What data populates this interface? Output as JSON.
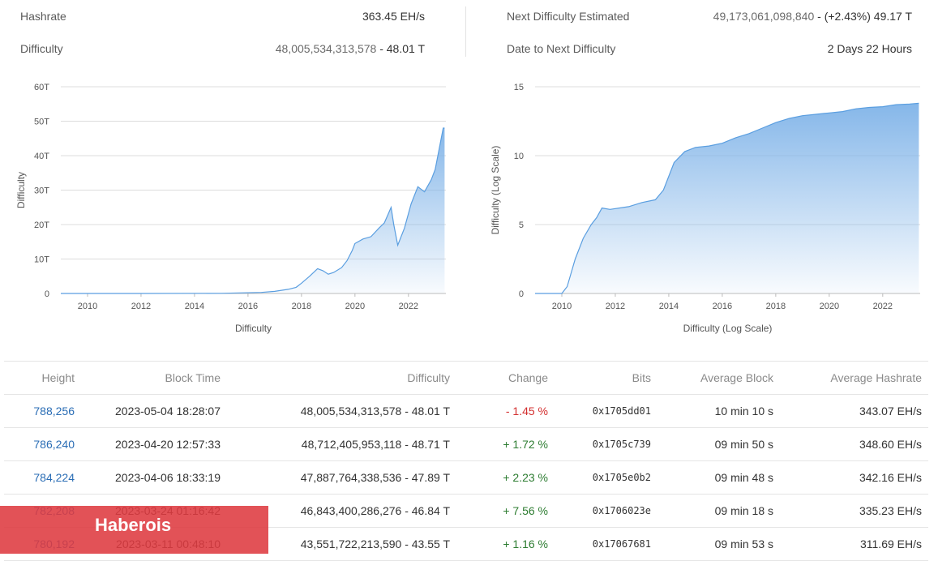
{
  "stats": {
    "hashrate_label": "Hashrate",
    "hashrate_value": "363.45 EH/s",
    "difficulty_label": "Difficulty",
    "difficulty_raw": "48,005,534,313,578",
    "difficulty_short": " - 48.01 T",
    "next_label": "Next Difficulty Estimated",
    "next_raw": "49,173,061,098,840",
    "next_short": " - (+2.43%) 49.17 T",
    "date_label": "Date to Next Difficulty",
    "date_value": "2 Days 22 Hours"
  },
  "colors": {
    "area": "#7fb3e8",
    "line": "#5a9ee0",
    "grid": "#dddddd",
    "link": "#2a6db5",
    "negative": "#d32f2f",
    "positive": "#2e7d32",
    "brand": "#de3a40"
  },
  "chart_data": [
    {
      "type": "area",
      "title": "",
      "xlabel": "Difficulty",
      "ylabel": "Difficulty",
      "xlim": [
        2009,
        2023.4
      ],
      "ylim": [
        0,
        60
      ],
      "y_ticks": [
        "0",
        "10T",
        "20T",
        "30T",
        "40T",
        "50T",
        "60T"
      ],
      "x_ticks": [
        "2010",
        "2012",
        "2014",
        "2016",
        "2018",
        "2020",
        "2022"
      ],
      "grid": true,
      "series": [
        {
          "x": [
            2009.0,
            2012.0,
            2015.0,
            2016.5,
            2017.0,
            2017.5,
            2017.8,
            2018.0,
            2018.3,
            2018.6,
            2018.8,
            2019.0,
            2019.2,
            2019.5,
            2019.7,
            2019.9,
            2020.0,
            2020.3,
            2020.6,
            2020.9,
            2021.1,
            2021.35,
            2021.45,
            2021.6,
            2021.85,
            2022.1,
            2022.35,
            2022.6,
            2022.85,
            2023.0,
            2023.1,
            2023.2,
            2023.3,
            2023.35
          ],
          "y": [
            0,
            0,
            0.05,
            0.3,
            0.6,
            1.2,
            1.8,
            3.0,
            5.0,
            7.2,
            6.6,
            5.6,
            6.1,
            7.5,
            9.5,
            12.5,
            14.5,
            15.8,
            16.5,
            19.0,
            20.5,
            25.0,
            20.0,
            14.0,
            19.0,
            26.0,
            31.0,
            29.5,
            33.0,
            36.0,
            40.0,
            44.0,
            48.0,
            48.0
          ]
        }
      ]
    },
    {
      "type": "area",
      "title": "",
      "xlabel": "Difficulty (Log Scale)",
      "ylabel": "Difficulty (Log Scale)",
      "xlim": [
        2009,
        2023.4
      ],
      "ylim": [
        0,
        15
      ],
      "y_ticks": [
        "0",
        "5",
        "10",
        "15"
      ],
      "x_ticks": [
        "2010",
        "2012",
        "2014",
        "2016",
        "2018",
        "2020",
        "2022"
      ],
      "grid": true,
      "series": [
        {
          "x": [
            2009.0,
            2010.0,
            2010.2,
            2010.5,
            2010.8,
            2011.1,
            2011.3,
            2011.5,
            2011.8,
            2012.5,
            2013.0,
            2013.5,
            2013.8,
            2014.2,
            2014.6,
            2015.0,
            2015.5,
            2016.0,
            2016.5,
            2017.0,
            2017.5,
            2018.0,
            2018.5,
            2019.0,
            2019.5,
            2020.0,
            2020.5,
            2021.0,
            2021.5,
            2022.0,
            2022.5,
            2023.0,
            2023.35
          ],
          "y": [
            0,
            0,
            0.5,
            2.5,
            4.0,
            5.0,
            5.5,
            6.2,
            6.1,
            6.3,
            6.6,
            6.8,
            7.5,
            9.5,
            10.3,
            10.6,
            10.7,
            10.9,
            11.3,
            11.6,
            12.0,
            12.4,
            12.7,
            12.9,
            13.0,
            13.1,
            13.2,
            13.4,
            13.5,
            13.55,
            13.7,
            13.75,
            13.8
          ]
        }
      ]
    }
  ],
  "table": {
    "headers": {
      "height": "Height",
      "block_time": "Block Time",
      "difficulty": "Difficulty",
      "change": "Change",
      "bits": "Bits",
      "avg_block": "Average Block",
      "avg_hashrate": "Average Hashrate"
    },
    "rows": [
      {
        "height": "788,256",
        "block_time": "2023-05-04 18:28:07",
        "difficulty": "48,005,534,313,578 - 48.01 T",
        "change": "- 1.45 %",
        "bits": "0x1705dd01",
        "avg_block": "10 min 10 s",
        "avg_hashrate": "343.07 EH/s"
      },
      {
        "height": "786,240",
        "block_time": "2023-04-20 12:57:33",
        "difficulty": "48,712,405,953,118 - 48.71 T",
        "change": "+ 1.72 %",
        "bits": "0x1705c739",
        "avg_block": "09 min 50 s",
        "avg_hashrate": "348.60 EH/s"
      },
      {
        "height": "784,224",
        "block_time": "2023-04-06 18:33:19",
        "difficulty": "47,887,764,338,536 - 47.89 T",
        "change": "+ 2.23 %",
        "bits": "0x1705e0b2",
        "avg_block": "09 min 48 s",
        "avg_hashrate": "342.16 EH/s"
      },
      {
        "height": "782,208",
        "block_time": "2023-03-24 01:16:42",
        "difficulty": "46,843,400,286,276 - 46.84 T",
        "change": "+ 7.56 %",
        "bits": "0x1706023e",
        "avg_block": "09 min 18 s",
        "avg_hashrate": "335.23 EH/s"
      },
      {
        "height": "780,192",
        "block_time": "2023-03-11 00:48:10",
        "difficulty": "43,551,722,213,590 - 43.55 T",
        "change": "+ 1.16 %",
        "bits": "0x17067681",
        "avg_block": "09 min 53 s",
        "avg_hashrate": "311.69 EH/s"
      }
    ]
  },
  "brand": {
    "name": "Haberois"
  }
}
